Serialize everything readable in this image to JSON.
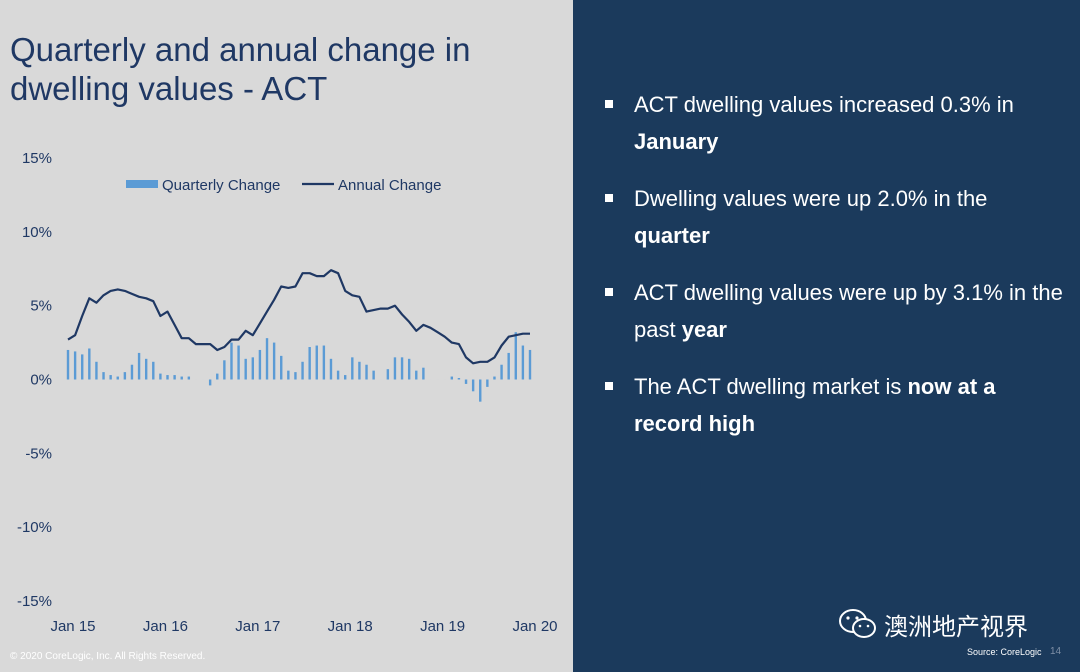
{
  "slide": {
    "title": "Quarterly and annual change in dwelling values - ACT",
    "footer": "© 2020 CoreLogic, Inc. All Rights Reserved.",
    "source": "Source: CoreLogic",
    "page_number": "14",
    "watermark": "澳洲地产视界"
  },
  "bullets": [
    [
      {
        "t": "ACT dwelling values increased 0.3% in ",
        "b": false
      },
      {
        "t": "January",
        "b": true
      }
    ],
    [
      {
        "t": "Dwelling values were up 2.0% in the ",
        "b": false
      },
      {
        "t": "quarter",
        "b": true
      }
    ],
    [
      {
        "t": "ACT dwelling values were up by 3.1% in the past ",
        "b": false
      },
      {
        "t": "year",
        "b": true
      }
    ],
    [
      {
        "t": "The ACT dwelling market is ",
        "b": false
      },
      {
        "t": "now at a record high",
        "b": true
      }
    ]
  ],
  "colors": {
    "quarterly": "#5b9bd5",
    "annual": "#1f3864",
    "axis_text": "#1f3864",
    "panel": "#1b3a5c"
  },
  "chart_data": {
    "type": "bar+line",
    "title": "",
    "xlabel": "",
    "ylabel": "",
    "ylim": [
      -15,
      15
    ],
    "yticks": [
      "15%",
      "10%",
      "5%",
      "0%",
      "-5%",
      "-10%",
      "-15%"
    ],
    "ytick_values": [
      15,
      10,
      5,
      0,
      -5,
      -10,
      -15
    ],
    "xticks": [
      "Jan 15",
      "Jan 16",
      "Jan 17",
      "Jan 18",
      "Jan 19",
      "Jan 20"
    ],
    "legend": [
      "Quarterly Change",
      "Annual Change"
    ],
    "legend_position": "top",
    "grid": false,
    "series": [
      {
        "name": "Quarterly Change",
        "type": "bar",
        "values": [
          2.0,
          1.9,
          1.7,
          2.1,
          1.2,
          0.5,
          0.3,
          0.2,
          0.5,
          1.0,
          1.8,
          1.4,
          1.2,
          0.4,
          0.3,
          0.3,
          0.2,
          0.2,
          0.0,
          0.0,
          -0.4,
          0.4,
          1.3,
          2.5,
          2.3,
          1.4,
          1.5,
          2.0,
          2.8,
          2.5,
          1.6,
          0.6,
          0.5,
          1.2,
          2.2,
          2.3,
          2.3,
          1.4,
          0.6,
          0.3,
          1.5,
          1.2,
          1.0,
          0.6,
          0.0,
          0.7,
          1.5,
          1.5,
          1.4,
          0.6,
          0.8,
          0.0,
          0.0,
          0.0,
          0.2,
          0.1,
          -0.3,
          -0.8,
          -1.5,
          -0.5,
          0.2,
          1.0,
          1.8,
          3.2,
          2.3,
          2.0
        ]
      },
      {
        "name": "Annual Change",
        "type": "line",
        "values": [
          2.7,
          3.0,
          4.3,
          5.5,
          5.2,
          5.7,
          6.0,
          6.1,
          6.0,
          5.8,
          5.6,
          5.5,
          5.3,
          4.3,
          4.6,
          3.7,
          2.8,
          2.8,
          2.4,
          2.4,
          2.4,
          2.0,
          2.2,
          2.7,
          2.7,
          3.3,
          3.0,
          3.8,
          4.6,
          5.4,
          6.3,
          6.2,
          6.3,
          7.2,
          7.2,
          7.0,
          7.0,
          7.4,
          7.2,
          6.0,
          5.7,
          5.6,
          4.6,
          4.7,
          4.8,
          4.8,
          5.0,
          4.4,
          3.9,
          3.3,
          3.7,
          3.5,
          3.2,
          2.9,
          2.5,
          2.4,
          1.5,
          1.1,
          1.2,
          1.2,
          1.5,
          2.3,
          2.9,
          3.0,
          3.1,
          3.1
        ]
      }
    ]
  }
}
